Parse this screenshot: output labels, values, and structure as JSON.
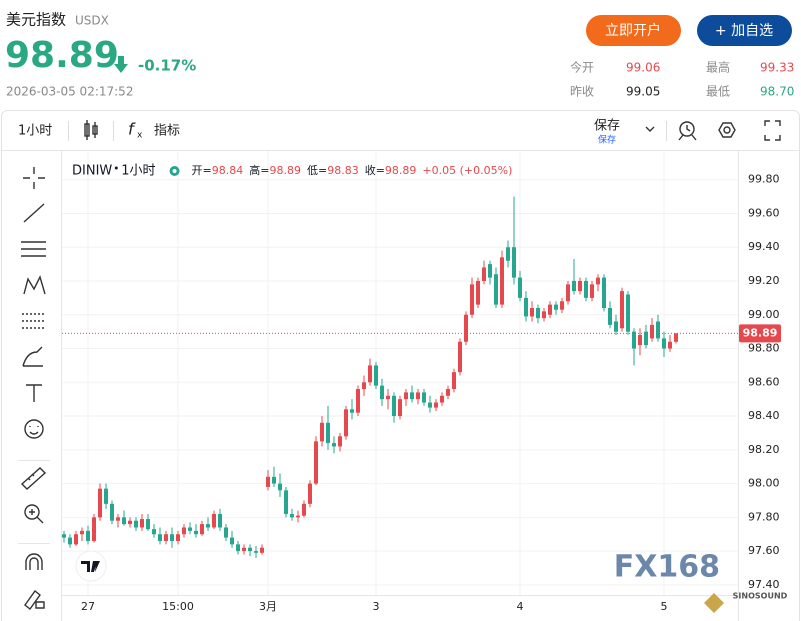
{
  "header": {
    "name": "美元指数",
    "code": "USDX",
    "price": "98.89",
    "change": "-0.17%",
    "time": "2026-03-05 02:17:52",
    "open_account": "立即开户",
    "add_watch": "+ 加自选",
    "stats": [
      {
        "label": "今开",
        "value": "99.06"
      },
      {
        "label": "最高",
        "value": "99.33"
      },
      {
        "label": "昨收",
        "value": "99.05"
      },
      {
        "label": "最低",
        "value": "98.70"
      }
    ]
  },
  "toolbar": {
    "interval": "1小时",
    "indicators": "指标",
    "save": "保存",
    "save_sub": "保存"
  },
  "chart_data": {
    "type": "candlestick",
    "symbol": "DINIW",
    "interval": "1小时",
    "legend": [
      {
        "label": "开=",
        "value": 98.84
      },
      {
        "label": "高=",
        "value": 98.89
      },
      {
        "label": "低=",
        "value": 98.83
      },
      {
        "label": "收=",
        "value": 98.89
      }
    ],
    "change": "+0.05 (+0.05%)",
    "up_color": "#e5484d",
    "down_color": "#26a68f",
    "last_price": 98.89,
    "watermark": "FX168",
    "watermark2": "SINOSOUND",
    "ylim": [
      97.34,
      99.97
    ],
    "yticks": [
      {
        "value": 97.4,
        "label": "97.40"
      },
      {
        "value": 97.6,
        "label": "97.60"
      },
      {
        "value": 97.8,
        "label": "97.80"
      },
      {
        "value": 98.0,
        "label": "98.00"
      },
      {
        "value": 98.2,
        "label": "98.20"
      },
      {
        "value": 98.4,
        "label": "98.40"
      },
      {
        "value": 98.6,
        "label": "98.60"
      },
      {
        "value": 98.8,
        "label": "98.80"
      },
      {
        "value": 99.0,
        "label": "99.00"
      },
      {
        "value": 99.2,
        "label": "99.20"
      },
      {
        "value": 99.4,
        "label": "99.40"
      },
      {
        "value": 99.6,
        "label": "99.60"
      },
      {
        "value": 99.8,
        "label": "99.80"
      }
    ],
    "categories": [
      null,
      null,
      null,
      null,
      "27",
      null,
      null,
      null,
      null,
      null,
      null,
      null,
      null,
      null,
      null,
      null,
      null,
      null,
      null,
      "15:00",
      null,
      null,
      null,
      null,
      null,
      null,
      null,
      null,
      null,
      null,
      null,
      null,
      null,
      null,
      "3月",
      null,
      null,
      null,
      null,
      null,
      null,
      null,
      null,
      null,
      null,
      null,
      null,
      null,
      null,
      null,
      null,
      null,
      "3",
      null,
      null,
      null,
      null,
      null,
      null,
      null,
      null,
      null,
      null,
      null,
      null,
      null,
      null,
      null,
      null,
      null,
      null,
      null,
      null,
      null,
      null,
      null,
      "4",
      null,
      null,
      null,
      null,
      null,
      null,
      null,
      null,
      null,
      null,
      null,
      null,
      null,
      null,
      null,
      null,
      null,
      null,
      null,
      null,
      null,
      null,
      null,
      "5",
      null,
      null
    ],
    "ohlc": [
      [
        97.7,
        97.72,
        97.65,
        97.68
      ],
      [
        97.68,
        97.7,
        97.62,
        97.64
      ],
      [
        97.64,
        97.72,
        97.63,
        97.7
      ],
      [
        97.7,
        97.74,
        97.66,
        97.72
      ],
      [
        97.72,
        97.75,
        97.64,
        97.66
      ],
      [
        97.66,
        97.82,
        97.65,
        97.8
      ],
      [
        97.8,
        98.0,
        97.78,
        97.97
      ],
      [
        97.97,
        98.0,
        97.85,
        97.88
      ],
      [
        97.88,
        97.9,
        97.76,
        97.78
      ],
      [
        97.78,
        97.82,
        97.74,
        97.8
      ],
      [
        97.8,
        97.84,
        97.75,
        97.76
      ],
      [
        97.76,
        97.8,
        97.74,
        97.78
      ],
      [
        97.78,
        97.8,
        97.72,
        97.74
      ],
      [
        97.74,
        97.82,
        97.72,
        97.79
      ],
      [
        97.79,
        97.82,
        97.72,
        97.73
      ],
      [
        97.73,
        97.76,
        97.68,
        97.7
      ],
      [
        97.7,
        97.74,
        97.64,
        97.66
      ],
      [
        97.66,
        97.72,
        97.64,
        97.7
      ],
      [
        97.7,
        97.74,
        97.62,
        97.66
      ],
      [
        97.66,
        97.72,
        97.64,
        97.7
      ],
      [
        97.7,
        97.76,
        97.68,
        97.74
      ],
      [
        97.74,
        97.77,
        97.7,
        97.72
      ],
      [
        97.72,
        97.76,
        97.68,
        97.7
      ],
      [
        97.7,
        97.78,
        97.69,
        97.76
      ],
      [
        97.76,
        97.8,
        97.72,
        97.74
      ],
      [
        97.74,
        97.84,
        97.73,
        97.82
      ],
      [
        97.82,
        97.85,
        97.72,
        97.74
      ],
      [
        97.74,
        97.76,
        97.66,
        97.68
      ],
      [
        97.68,
        97.72,
        97.62,
        97.64
      ],
      [
        97.64,
        97.66,
        97.58,
        97.6
      ],
      [
        97.6,
        97.64,
        97.58,
        97.62
      ],
      [
        97.62,
        97.64,
        97.57,
        97.6
      ],
      [
        97.6,
        97.63,
        97.56,
        97.59
      ],
      [
        97.59,
        97.64,
        97.58,
        97.62
      ],
      [
        97.98,
        98.08,
        97.96,
        98.04
      ],
      [
        98.04,
        98.1,
        97.98,
        98.0
      ],
      [
        98.0,
        98.06,
        97.92,
        97.96
      ],
      [
        97.96,
        97.98,
        97.8,
        97.82
      ],
      [
        97.82,
        97.85,
        97.78,
        97.8
      ],
      [
        97.8,
        97.84,
        97.77,
        97.81
      ],
      [
        97.81,
        97.9,
        97.8,
        97.88
      ],
      [
        97.88,
        98.02,
        97.86,
        98.0
      ],
      [
        98.0,
        98.28,
        97.99,
        98.25
      ],
      [
        98.25,
        98.4,
        98.22,
        98.36
      ],
      [
        98.36,
        98.46,
        98.2,
        98.24
      ],
      [
        98.24,
        98.28,
        98.18,
        98.22
      ],
      [
        98.22,
        98.3,
        98.19,
        98.28
      ],
      [
        98.28,
        98.46,
        98.26,
        98.44
      ],
      [
        98.44,
        98.5,
        98.38,
        98.42
      ],
      [
        98.42,
        98.58,
        98.4,
        98.56
      ],
      [
        98.56,
        98.64,
        98.52,
        98.6
      ],
      [
        98.6,
        98.74,
        98.58,
        98.7
      ],
      [
        98.7,
        98.72,
        98.56,
        98.58
      ],
      [
        98.58,
        98.62,
        98.46,
        98.5
      ],
      [
        98.5,
        98.56,
        98.44,
        98.52
      ],
      [
        98.52,
        98.54,
        98.36,
        98.4
      ],
      [
        98.4,
        98.52,
        98.38,
        98.5
      ],
      [
        98.5,
        98.56,
        98.46,
        98.54
      ],
      [
        98.54,
        98.58,
        98.48,
        98.5
      ],
      [
        98.5,
        98.56,
        98.47,
        98.54
      ],
      [
        98.54,
        98.56,
        98.46,
        98.48
      ],
      [
        98.48,
        98.52,
        98.42,
        98.45
      ],
      [
        98.45,
        98.5,
        98.43,
        98.48
      ],
      [
        98.48,
        98.54,
        98.46,
        98.52
      ],
      [
        98.52,
        98.58,
        98.5,
        98.56
      ],
      [
        98.56,
        98.68,
        98.54,
        98.66
      ],
      [
        98.66,
        98.86,
        98.64,
        98.84
      ],
      [
        98.84,
        99.02,
        98.82,
        99.0
      ],
      [
        99.0,
        99.22,
        98.98,
        99.18
      ],
      [
        99.06,
        99.22,
        99.04,
        99.2
      ],
      [
        99.2,
        99.32,
        99.18,
        99.28
      ],
      [
        99.3,
        99.32,
        99.18,
        99.22
      ],
      [
        99.24,
        99.28,
        99.04,
        99.06
      ],
      [
        99.06,
        99.38,
        99.04,
        99.34
      ],
      [
        99.4,
        99.44,
        99.28,
        99.32
      ],
      [
        99.4,
        99.7,
        99.18,
        99.22
      ],
      [
        99.22,
        99.26,
        99.08,
        99.1
      ],
      [
        99.1,
        99.14,
        98.96,
        98.99
      ],
      [
        98.99,
        99.08,
        98.96,
        99.04
      ],
      [
        99.04,
        99.06,
        98.95,
        98.98
      ],
      [
        98.98,
        99.04,
        98.96,
        99.02
      ],
      [
        99.0,
        99.08,
        98.98,
        99.06
      ],
      [
        99.06,
        99.08,
        99.0,
        99.03
      ],
      [
        99.03,
        99.1,
        99.01,
        99.08
      ],
      [
        99.08,
        99.2,
        99.06,
        99.18
      ],
      [
        99.2,
        99.33,
        99.12,
        99.14
      ],
      [
        99.14,
        99.22,
        99.12,
        99.2
      ],
      [
        99.2,
        99.22,
        99.08,
        99.1
      ],
      [
        99.1,
        99.2,
        99.08,
        99.18
      ],
      [
        99.18,
        99.24,
        99.14,
        99.22
      ],
      [
        99.22,
        99.24,
        99.02,
        99.04
      ],
      [
        99.04,
        99.08,
        98.92,
        98.94
      ],
      [
        98.96,
        99.0,
        98.88,
        98.9
      ],
      [
        98.92,
        99.16,
        98.9,
        99.14
      ],
      [
        99.12,
        99.14,
        98.88,
        98.9
      ],
      [
        98.9,
        98.92,
        98.7,
        98.8
      ],
      [
        98.82,
        98.92,
        98.76,
        98.88
      ],
      [
        98.9,
        98.94,
        98.8,
        98.82
      ],
      [
        98.86,
        98.98,
        98.84,
        98.94
      ],
      [
        98.96,
        99.0,
        98.84,
        98.86
      ],
      [
        98.86,
        98.9,
        98.75,
        98.8
      ],
      [
        98.8,
        98.88,
        98.78,
        98.84
      ],
      [
        98.84,
        98.89,
        98.83,
        98.89
      ]
    ]
  }
}
